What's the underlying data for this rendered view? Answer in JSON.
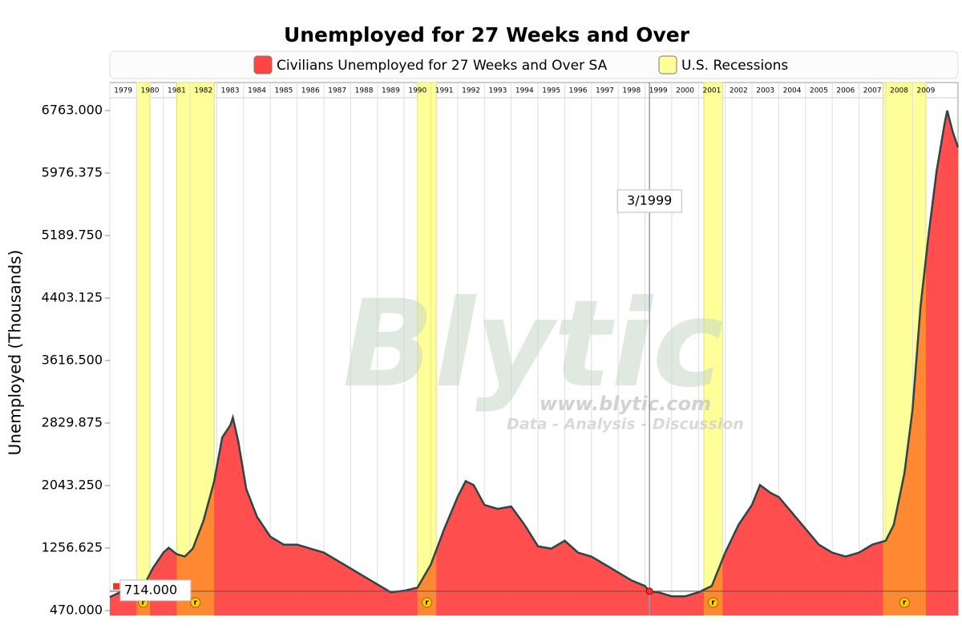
{
  "chart_data": {
    "type": "area",
    "title": "Unemployed for 27 Weeks and Over",
    "y_label": "Unemployed (Thousands)",
    "x": [
      1979.0,
      1979.5,
      1980.0,
      1980.3,
      1980.6,
      1981.0,
      1981.2,
      1981.5,
      1981.8,
      1982.1,
      1982.5,
      1982.9,
      1983.2,
      1983.5,
      1983.6,
      1983.8,
      1984.1,
      1984.5,
      1985.0,
      1985.5,
      1986.0,
      1986.5,
      1987.0,
      1987.5,
      1988.0,
      1988.5,
      1989.0,
      1989.5,
      1990.0,
      1990.5,
      1991.0,
      1991.5,
      1992.0,
      1992.3,
      1992.6,
      1993.0,
      1993.5,
      1994.0,
      1994.5,
      1995.0,
      1995.5,
      1996.0,
      1996.5,
      1997.0,
      1997.5,
      1998.0,
      1998.5,
      1999.0,
      1999.17,
      1999.5,
      2000.0,
      2000.5,
      2001.0,
      2001.5,
      2002.0,
      2002.5,
      2003.0,
      2003.3,
      2003.7,
      2004.0,
      2004.5,
      2005.0,
      2005.5,
      2006.0,
      2006.5,
      2007.0,
      2007.5,
      2008.0,
      2008.3,
      2008.7,
      2009.0,
      2009.3,
      2009.6,
      2009.9,
      2010.2,
      2010.3,
      2010.5,
      2010.7
    ],
    "series": [
      {
        "name": "Civilians Unemployed for 27 Weeks and Over SA",
        "color": "#ff4444",
        "line_color": "#2a4646",
        "values": [
          640,
          720,
          700,
          800,
          1000,
          1200,
          1260,
          1180,
          1150,
          1250,
          1600,
          2100,
          2650,
          2800,
          2900,
          2600,
          2000,
          1650,
          1400,
          1300,
          1300,
          1250,
          1200,
          1100,
          1000,
          900,
          800,
          700,
          720,
          760,
          1050,
          1500,
          1900,
          2100,
          2050,
          1800,
          1750,
          1780,
          1550,
          1280,
          1250,
          1350,
          1200,
          1150,
          1050,
          950,
          850,
          780,
          714,
          700,
          650,
          650,
          700,
          780,
          1200,
          1550,
          1800,
          2050,
          1950,
          1900,
          1700,
          1500,
          1300,
          1200,
          1150,
          1200,
          1300,
          1350,
          1550,
          2200,
          3000,
          4300,
          5200,
          6000,
          6600,
          6763,
          6500,
          6300
        ]
      }
    ],
    "recessions": {
      "name": "U.S. Recessions",
      "color": "#ffff99",
      "overlap_color": "#ff8833",
      "marker": "r",
      "periods": [
        [
          1980.0,
          1980.5
        ],
        [
          1981.5,
          1982.9
        ],
        [
          1990.5,
          1991.2
        ],
        [
          2001.2,
          2001.9
        ],
        [
          2007.9,
          2009.5
        ]
      ]
    },
    "crosshair": {
      "label": "3/1999",
      "x": 1999.17,
      "value": 714,
      "value_label": "714.000"
    },
    "xlim": [
      1979,
      2010.7
    ],
    "xticks": [
      1979,
      1980,
      1981,
      1982,
      1983,
      1984,
      1985,
      1986,
      1987,
      1988,
      1989,
      1990,
      1991,
      1992,
      1993,
      1994,
      1995,
      1996,
      1997,
      1998,
      1999,
      2000,
      2001,
      2002,
      2003,
      2004,
      2005,
      2006,
      2007,
      2008,
      2009
    ],
    "ylim": [
      410,
      6924
    ],
    "yticks": [
      {
        "value": 470,
        "label": "470.000"
      },
      {
        "value": 1256.625,
        "label": "1256.625"
      },
      {
        "value": 2043.25,
        "label": "2043.250"
      },
      {
        "value": 2829.875,
        "label": "2829.875"
      },
      {
        "value": 3616.5,
        "label": "3616.500"
      },
      {
        "value": 4403.125,
        "label": "4403.125"
      },
      {
        "value": 5189.75,
        "label": "5189.750"
      },
      {
        "value": 5976.375,
        "label": "5976.375"
      },
      {
        "value": 6763,
        "label": "6763.000"
      }
    ],
    "grid": true,
    "watermark": {
      "logo": "Blytic",
      "url": "www.blytic.com",
      "tagline": "Data - Analysis - Discussion"
    }
  }
}
